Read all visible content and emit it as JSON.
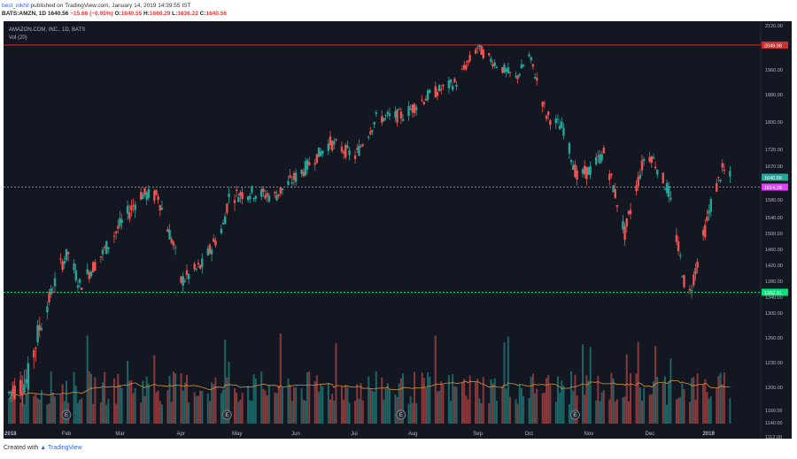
{
  "header": {
    "publisher": "best_nikhil",
    "published_text": "published on TradingView.com, January 14, 2019 14:39:55 IST",
    "symbol": "BATS:AMZN, 1D",
    "last": "1640.56",
    "change": "−15.66 (−0.95%)",
    "o_label": "O:",
    "o_value": "1640.55",
    "h_label": "H:",
    "h_value": "1660.29",
    "l_label": "L:",
    "l_value": "1636.22",
    "c_label": "C:",
    "c_value": "1640.56"
  },
  "legend": {
    "title": "AMAZON.COM, INC., 1D, BATS",
    "volume": "Vol (20)"
  },
  "footer": {
    "created_with": "Created with",
    "brand": "TradingView"
  },
  "colors": {
    "background": "#131722",
    "up": "#26a69a",
    "down": "#ef5350",
    "resistance": "#d32f2f",
    "mid_level": "#e040fb",
    "support": "#00e676",
    "volume_ma": "#d7923a"
  },
  "chart_data": {
    "type": "candlestick",
    "y_ticks": [
      2120,
      1960,
      1880,
      1800,
      1720,
      1670,
      1580,
      1540,
      1500,
      1460,
      1420,
      1380,
      1340,
      1300,
      1260,
      1230,
      1200,
      1160,
      1140,
      1112
    ],
    "y_tick_labels": [
      "2120.00",
      "1960.00",
      "1880.00",
      "1800.00",
      "1720.00",
      "1670.00",
      "1580.00",
      "1540.00",
      "1500.00",
      "1460.00",
      "1420.00",
      "1380.00",
      "1340.00",
      "1300.00",
      "1260.00",
      "1230.00",
      "1200.00",
      "1160.00",
      "1140.00",
      "1112.00"
    ],
    "x_tick_labels": [
      "2018",
      "Feb",
      "Mar",
      "Apr",
      "May",
      "Jun",
      "Jul",
      "Aug",
      "Sep",
      "Oct",
      "Nov",
      "Dec",
      "2019"
    ],
    "levels": [
      {
        "label": "2049.98",
        "value": 2049.98,
        "color": "#d32f2f",
        "style": "solid"
      },
      {
        "label": "1614.28",
        "value": 1614.28,
        "color": "#e040fb",
        "style": "dotted"
      },
      {
        "label": "1352.31",
        "value": 1352.31,
        "color": "#00e676",
        "style": "dotted"
      }
    ],
    "last_price_label": "1640.56",
    "earnings_markers": [
      "E",
      "E",
      "E",
      "E"
    ],
    "price_path": [
      {
        "x": "2018-01-02",
        "y": 1190
      },
      {
        "x": "2018-01-12",
        "y": 1210
      },
      {
        "x": "2018-01-22",
        "y": 1320
      },
      {
        "x": "2018-01-29",
        "y": 1420
      },
      {
        "x": "2018-02-02",
        "y": 1450
      },
      {
        "x": "2018-02-08",
        "y": 1370
      },
      {
        "x": "2018-02-20",
        "y": 1450
      },
      {
        "x": "2018-03-01",
        "y": 1520
      },
      {
        "x": "2018-03-12",
        "y": 1595
      },
      {
        "x": "2018-03-21",
        "y": 1590
      },
      {
        "x": "2018-03-29",
        "y": 1470
      },
      {
        "x": "2018-04-02",
        "y": 1380
      },
      {
        "x": "2018-04-13",
        "y": 1420
      },
      {
        "x": "2018-04-24",
        "y": 1520
      },
      {
        "x": "2018-04-27",
        "y": 1590
      },
      {
        "x": "2018-05-08",
        "y": 1600
      },
      {
        "x": "2018-05-21",
        "y": 1590
      },
      {
        "x": "2018-06-05",
        "y": 1660
      },
      {
        "x": "2018-06-19",
        "y": 1740
      },
      {
        "x": "2018-07-02",
        "y": 1700
      },
      {
        "x": "2018-07-13",
        "y": 1810
      },
      {
        "x": "2018-07-27",
        "y": 1820
      },
      {
        "x": "2018-08-10",
        "y": 1880
      },
      {
        "x": "2018-08-24",
        "y": 1920
      },
      {
        "x": "2018-09-04",
        "y": 2040
      },
      {
        "x": "2018-09-12",
        "y": 1990
      },
      {
        "x": "2018-09-24",
        "y": 1930
      },
      {
        "x": "2018-10-01",
        "y": 2010
      },
      {
        "x": "2018-10-10",
        "y": 1820
      },
      {
        "x": "2018-10-19",
        "y": 1780
      },
      {
        "x": "2018-10-26",
        "y": 1640
      },
      {
        "x": "2018-11-02",
        "y": 1660
      },
      {
        "x": "2018-11-09",
        "y": 1710
      },
      {
        "x": "2018-11-20",
        "y": 1500
      },
      {
        "x": "2018-11-30",
        "y": 1690
      },
      {
        "x": "2018-12-04",
        "y": 1700
      },
      {
        "x": "2018-12-13",
        "y": 1600
      },
      {
        "x": "2018-12-21",
        "y": 1380
      },
      {
        "x": "2018-12-24",
        "y": 1350
      },
      {
        "x": "2019-01-04",
        "y": 1570
      },
      {
        "x": "2019-01-10",
        "y": 1660
      },
      {
        "x": "2019-01-14",
        "y": 1640.56
      }
    ]
  }
}
